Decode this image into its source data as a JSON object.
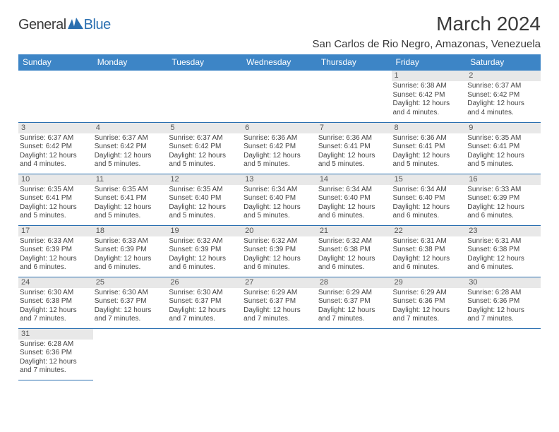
{
  "logo": {
    "general": "General",
    "blue": "Blue"
  },
  "title": "March 2024",
  "location": "San Carlos de Rio Negro, Amazonas, Venezuela",
  "colors": {
    "header_bg": "#3d85c6",
    "header_text": "#ffffff",
    "border": "#2a6fb0",
    "daynum_bg": "#e8e8e8",
    "text": "#3a3a3a",
    "logo_blue": "#2a6fb0"
  },
  "day_headers": [
    "Sunday",
    "Monday",
    "Tuesday",
    "Wednesday",
    "Thursday",
    "Friday",
    "Saturday"
  ],
  "weeks": [
    [
      {
        "day": "",
        "lines": []
      },
      {
        "day": "",
        "lines": []
      },
      {
        "day": "",
        "lines": []
      },
      {
        "day": "",
        "lines": []
      },
      {
        "day": "",
        "lines": []
      },
      {
        "day": "1",
        "lines": [
          "Sunrise: 6:38 AM",
          "Sunset: 6:42 PM",
          "Daylight: 12 hours",
          "and 4 minutes."
        ]
      },
      {
        "day": "2",
        "lines": [
          "Sunrise: 6:37 AM",
          "Sunset: 6:42 PM",
          "Daylight: 12 hours",
          "and 4 minutes."
        ]
      }
    ],
    [
      {
        "day": "3",
        "lines": [
          "Sunrise: 6:37 AM",
          "Sunset: 6:42 PM",
          "Daylight: 12 hours",
          "and 4 minutes."
        ]
      },
      {
        "day": "4",
        "lines": [
          "Sunrise: 6:37 AM",
          "Sunset: 6:42 PM",
          "Daylight: 12 hours",
          "and 5 minutes."
        ]
      },
      {
        "day": "5",
        "lines": [
          "Sunrise: 6:37 AM",
          "Sunset: 6:42 PM",
          "Daylight: 12 hours",
          "and 5 minutes."
        ]
      },
      {
        "day": "6",
        "lines": [
          "Sunrise: 6:36 AM",
          "Sunset: 6:42 PM",
          "Daylight: 12 hours",
          "and 5 minutes."
        ]
      },
      {
        "day": "7",
        "lines": [
          "Sunrise: 6:36 AM",
          "Sunset: 6:41 PM",
          "Daylight: 12 hours",
          "and 5 minutes."
        ]
      },
      {
        "day": "8",
        "lines": [
          "Sunrise: 6:36 AM",
          "Sunset: 6:41 PM",
          "Daylight: 12 hours",
          "and 5 minutes."
        ]
      },
      {
        "day": "9",
        "lines": [
          "Sunrise: 6:35 AM",
          "Sunset: 6:41 PM",
          "Daylight: 12 hours",
          "and 5 minutes."
        ]
      }
    ],
    [
      {
        "day": "10",
        "lines": [
          "Sunrise: 6:35 AM",
          "Sunset: 6:41 PM",
          "Daylight: 12 hours",
          "and 5 minutes."
        ]
      },
      {
        "day": "11",
        "lines": [
          "Sunrise: 6:35 AM",
          "Sunset: 6:41 PM",
          "Daylight: 12 hours",
          "and 5 minutes."
        ]
      },
      {
        "day": "12",
        "lines": [
          "Sunrise: 6:35 AM",
          "Sunset: 6:40 PM",
          "Daylight: 12 hours",
          "and 5 minutes."
        ]
      },
      {
        "day": "13",
        "lines": [
          "Sunrise: 6:34 AM",
          "Sunset: 6:40 PM",
          "Daylight: 12 hours",
          "and 5 minutes."
        ]
      },
      {
        "day": "14",
        "lines": [
          "Sunrise: 6:34 AM",
          "Sunset: 6:40 PM",
          "Daylight: 12 hours",
          "and 6 minutes."
        ]
      },
      {
        "day": "15",
        "lines": [
          "Sunrise: 6:34 AM",
          "Sunset: 6:40 PM",
          "Daylight: 12 hours",
          "and 6 minutes."
        ]
      },
      {
        "day": "16",
        "lines": [
          "Sunrise: 6:33 AM",
          "Sunset: 6:39 PM",
          "Daylight: 12 hours",
          "and 6 minutes."
        ]
      }
    ],
    [
      {
        "day": "17",
        "lines": [
          "Sunrise: 6:33 AM",
          "Sunset: 6:39 PM",
          "Daylight: 12 hours",
          "and 6 minutes."
        ]
      },
      {
        "day": "18",
        "lines": [
          "Sunrise: 6:33 AM",
          "Sunset: 6:39 PM",
          "Daylight: 12 hours",
          "and 6 minutes."
        ]
      },
      {
        "day": "19",
        "lines": [
          "Sunrise: 6:32 AM",
          "Sunset: 6:39 PM",
          "Daylight: 12 hours",
          "and 6 minutes."
        ]
      },
      {
        "day": "20",
        "lines": [
          "Sunrise: 6:32 AM",
          "Sunset: 6:39 PM",
          "Daylight: 12 hours",
          "and 6 minutes."
        ]
      },
      {
        "day": "21",
        "lines": [
          "Sunrise: 6:32 AM",
          "Sunset: 6:38 PM",
          "Daylight: 12 hours",
          "and 6 minutes."
        ]
      },
      {
        "day": "22",
        "lines": [
          "Sunrise: 6:31 AM",
          "Sunset: 6:38 PM",
          "Daylight: 12 hours",
          "and 6 minutes."
        ]
      },
      {
        "day": "23",
        "lines": [
          "Sunrise: 6:31 AM",
          "Sunset: 6:38 PM",
          "Daylight: 12 hours",
          "and 6 minutes."
        ]
      }
    ],
    [
      {
        "day": "24",
        "lines": [
          "Sunrise: 6:30 AM",
          "Sunset: 6:38 PM",
          "Daylight: 12 hours",
          "and 7 minutes."
        ]
      },
      {
        "day": "25",
        "lines": [
          "Sunrise: 6:30 AM",
          "Sunset: 6:37 PM",
          "Daylight: 12 hours",
          "and 7 minutes."
        ]
      },
      {
        "day": "26",
        "lines": [
          "Sunrise: 6:30 AM",
          "Sunset: 6:37 PM",
          "Daylight: 12 hours",
          "and 7 minutes."
        ]
      },
      {
        "day": "27",
        "lines": [
          "Sunrise: 6:29 AM",
          "Sunset: 6:37 PM",
          "Daylight: 12 hours",
          "and 7 minutes."
        ]
      },
      {
        "day": "28",
        "lines": [
          "Sunrise: 6:29 AM",
          "Sunset: 6:37 PM",
          "Daylight: 12 hours",
          "and 7 minutes."
        ]
      },
      {
        "day": "29",
        "lines": [
          "Sunrise: 6:29 AM",
          "Sunset: 6:36 PM",
          "Daylight: 12 hours",
          "and 7 minutes."
        ]
      },
      {
        "day": "30",
        "lines": [
          "Sunrise: 6:28 AM",
          "Sunset: 6:36 PM",
          "Daylight: 12 hours",
          "and 7 minutes."
        ]
      }
    ],
    [
      {
        "day": "31",
        "lines": [
          "Sunrise: 6:28 AM",
          "Sunset: 6:36 PM",
          "Daylight: 12 hours",
          "and 7 minutes."
        ]
      },
      {
        "day": "",
        "lines": []
      },
      {
        "day": "",
        "lines": []
      },
      {
        "day": "",
        "lines": []
      },
      {
        "day": "",
        "lines": []
      },
      {
        "day": "",
        "lines": []
      },
      {
        "day": "",
        "lines": []
      }
    ]
  ]
}
